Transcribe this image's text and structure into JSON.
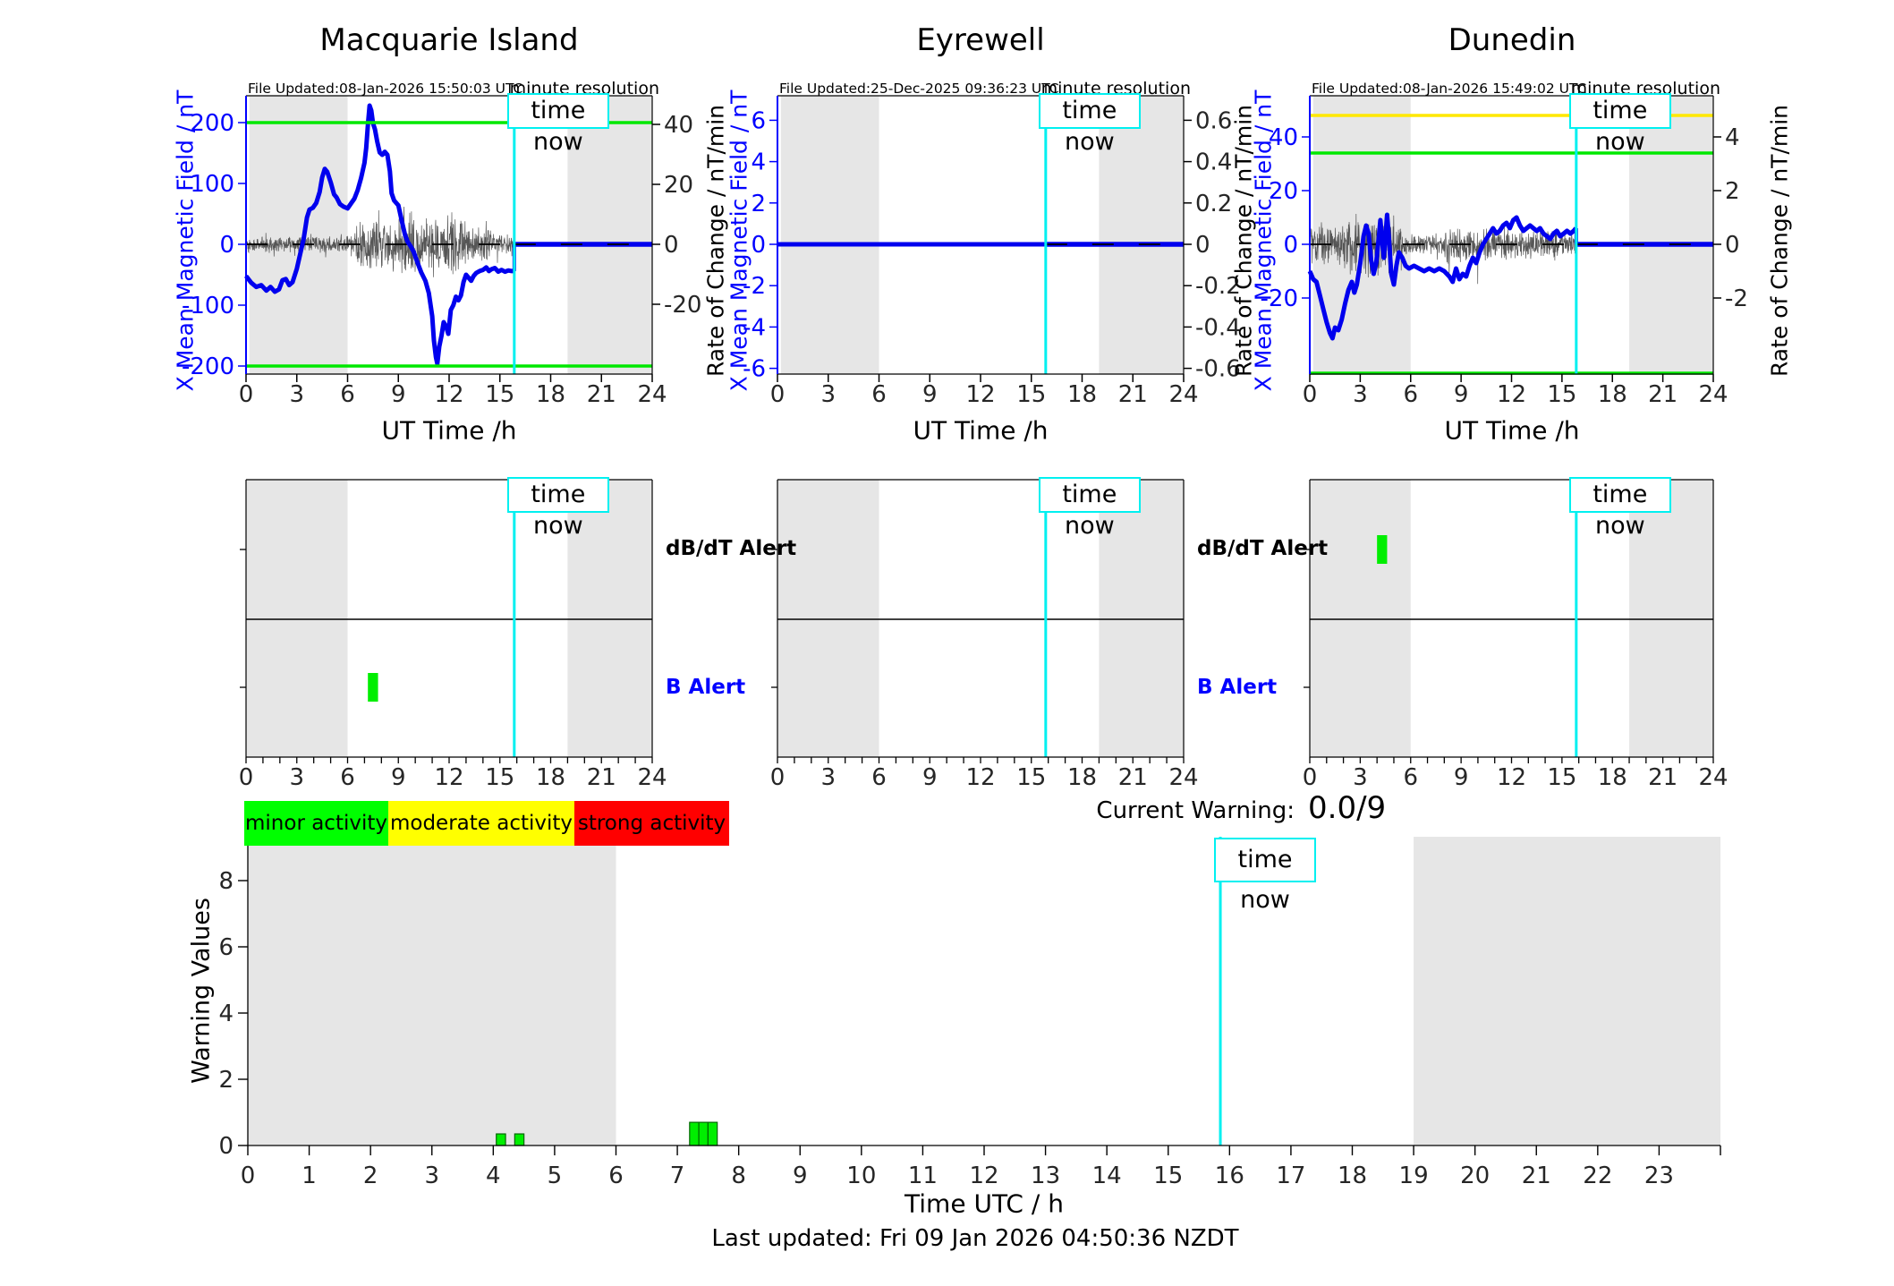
{
  "time_now_hour": 15.85,
  "time_now_label": "time now",
  "colors": {
    "field_line": "#0000ee",
    "noise_line": "#444444",
    "gray_band": "#e6e6e6",
    "cyan": "#00f0f0",
    "green_threshold": "#00e800",
    "yellow_threshold": "#ffe800",
    "minor": "#00ff00",
    "moderate": "#ffff00",
    "strong": "#ff0000",
    "bar_green": "#00ee00",
    "axis_blue": "#0000ff"
  },
  "chart_data": [
    {
      "type": "line",
      "title": "Macquarie Island",
      "file_updated": "File Updated:08-Jan-2026 15:50:03 UTC",
      "resolution_note": "minute resolution",
      "xlabel": "UT Time /h",
      "ylabel_left": "X Mean Magnetic Field / nT",
      "ylabel_right": "Rate of Change / nT/min",
      "xticks": [
        0,
        3,
        6,
        9,
        12,
        15,
        18,
        21,
        24
      ],
      "yticks_left": [
        200,
        100,
        0,
        -100,
        -200
      ],
      "yticks_right": [
        40,
        20,
        0,
        -20
      ],
      "xlim": [
        0,
        24
      ],
      "night_bands": [
        [
          0.2,
          6
        ],
        [
          19,
          24
        ]
      ],
      "thresholds": [
        {
          "value": 200,
          "color": "green"
        },
        {
          "value": -200,
          "color": "green"
        }
      ],
      "forecast": {
        "from": 15.85,
        "to": 24,
        "value": 0
      },
      "noise_bursts": [
        [
          0,
          6,
          3
        ],
        [
          6,
          6.5,
          4.5
        ],
        [
          6.5,
          9,
          9.5
        ],
        [
          9,
          13,
          12
        ],
        [
          13,
          14.5,
          6.5
        ],
        [
          14.5,
          15.83,
          4
        ]
      ],
      "series": [
        {
          "name": "X Mean Magnetic Field",
          "points": [
            [
              0,
              -52
            ],
            [
              0.3,
              -63
            ],
            [
              0.6,
              -70
            ],
            [
              0.9,
              -67
            ],
            [
              1.2,
              -76
            ],
            [
              1.45,
              -70
            ],
            [
              1.7,
              -78
            ],
            [
              1.95,
              -74
            ],
            [
              2.15,
              -59
            ],
            [
              2.35,
              -57
            ],
            [
              2.55,
              -67
            ],
            [
              2.75,
              -62
            ],
            [
              3,
              -40
            ],
            [
              3.2,
              -16
            ],
            [
              3.4,
              8
            ],
            [
              3.6,
              44
            ],
            [
              3.75,
              57
            ],
            [
              3.95,
              60
            ],
            [
              4.15,
              68
            ],
            [
              4.35,
              86
            ],
            [
              4.5,
              110
            ],
            [
              4.65,
              124
            ],
            [
              4.8,
              119
            ],
            [
              5,
              102
            ],
            [
              5.2,
              82
            ],
            [
              5.35,
              77
            ],
            [
              5.55,
              66
            ],
            [
              5.75,
              62
            ],
            [
              6,
              59
            ],
            [
              6.2,
              67
            ],
            [
              6.4,
              75
            ],
            [
              6.6,
              89
            ],
            [
              6.8,
              109
            ],
            [
              7,
              134
            ],
            [
              7.1,
              158
            ],
            [
              7.2,
              196
            ],
            [
              7.3,
              228
            ],
            [
              7.4,
              220
            ],
            [
              7.5,
              199
            ],
            [
              7.62,
              189
            ],
            [
              7.75,
              169
            ],
            [
              7.9,
              151
            ],
            [
              8.05,
              147
            ],
            [
              8.2,
              152
            ],
            [
              8.35,
              147
            ],
            [
              8.5,
              120
            ],
            [
              8.6,
              84
            ],
            [
              8.75,
              72
            ],
            [
              9,
              64
            ],
            [
              9.2,
              39
            ],
            [
              9.4,
              15
            ],
            [
              9.55,
              4
            ],
            [
              9.7,
              -2
            ],
            [
              9.9,
              -12
            ],
            [
              10.1,
              -28
            ],
            [
              10.35,
              -46
            ],
            [
              10.6,
              -60
            ],
            [
              10.8,
              -80
            ],
            [
              11,
              -118
            ],
            [
              11.1,
              -158
            ],
            [
              11.22,
              -185
            ],
            [
              11.3,
              -196
            ],
            [
              11.42,
              -168
            ],
            [
              11.55,
              -150
            ],
            [
              11.68,
              -128
            ],
            [
              11.82,
              -135
            ],
            [
              11.95,
              -147
            ],
            [
              12.1,
              -108
            ],
            [
              12.25,
              -100
            ],
            [
              12.4,
              -86
            ],
            [
              12.55,
              -92
            ],
            [
              12.7,
              -84
            ],
            [
              12.85,
              -62
            ],
            [
              13,
              -50
            ],
            [
              13.15,
              -55
            ],
            [
              13.3,
              -60
            ],
            [
              13.45,
              -52
            ],
            [
              13.6,
              -47
            ],
            [
              13.8,
              -44
            ],
            [
              14,
              -42
            ],
            [
              14.2,
              -38
            ],
            [
              14.35,
              -44
            ],
            [
              14.5,
              -41
            ],
            [
              14.7,
              -39
            ],
            [
              14.9,
              -45
            ],
            [
              15.1,
              -42
            ],
            [
              15.3,
              -45
            ],
            [
              15.5,
              -43
            ],
            [
              15.7,
              -44
            ],
            [
              15.83,
              -44
            ]
          ]
        }
      ]
    },
    {
      "type": "line",
      "title": "Eyrewell",
      "file_updated": "File Updated:25-Dec-2025 09:36:23 UTC",
      "resolution_note": "minute resolution",
      "xlabel": "UT Time /h",
      "ylabel_left": "X Mean Magnetic Field / nT",
      "ylabel_right": "Rate of Change / nT/min",
      "xticks": [
        0,
        3,
        6,
        9,
        12,
        15,
        18,
        21,
        24
      ],
      "yticks_left": [
        6,
        4,
        2,
        0,
        -2,
        -4,
        -6
      ],
      "yticks_right": [
        0.6,
        0.4,
        0.2,
        0,
        -0.2,
        -0.4,
        -0.6
      ],
      "xlim": [
        0,
        24
      ],
      "night_bands": [
        [
          0.2,
          6
        ],
        [
          19,
          24
        ]
      ],
      "thresholds": [],
      "forecast": {
        "from": 15.85,
        "to": 24,
        "value": 0
      },
      "noise_bursts": [],
      "series": [
        {
          "name": "X Mean Magnetic Field",
          "points": [
            [
              0,
              0
            ],
            [
              15.83,
              0
            ]
          ]
        }
      ]
    },
    {
      "type": "line",
      "title": "Dunedin",
      "file_updated": "File Updated:08-Jan-2026 15:49:02 UTC",
      "resolution_note": "minute resolution",
      "xlabel": "UT Time /h",
      "ylabel_left": "X Mean Magnetic Field / nT",
      "ylabel_right": "Rate of Change / nT/min",
      "xticks": [
        0,
        3,
        6,
        9,
        12,
        15,
        18,
        21,
        24
      ],
      "yticks_left": [
        40,
        20,
        0,
        -20
      ],
      "yticks_right": [
        4,
        2,
        0,
        -2
      ],
      "xlim": [
        0,
        24
      ],
      "night_bands": [
        [
          0.2,
          6
        ],
        [
          19,
          24
        ]
      ],
      "thresholds": [
        {
          "value": 48,
          "color": "yellow"
        },
        {
          "value": 34,
          "color": "green"
        },
        {
          "value": -48,
          "color": "green"
        }
      ],
      "forecast": {
        "from": 15.85,
        "to": 24,
        "value": 0
      },
      "noise_bursts": [
        [
          0,
          2,
          0.9
        ],
        [
          2,
          3.5,
          1.3
        ],
        [
          3.5,
          5,
          1.35
        ],
        [
          5,
          5.5,
          0.7
        ],
        [
          5.5,
          8,
          0.4
        ],
        [
          8,
          11,
          0.75
        ],
        [
          11,
          15.83,
          0.65
        ]
      ],
      "series": [
        {
          "name": "X Mean Magnetic Field",
          "points": [
            [
              0,
              -10
            ],
            [
              0.2,
              -13
            ],
            [
              0.4,
              -14
            ],
            [
              0.6,
              -19
            ],
            [
              0.8,
              -24
            ],
            [
              1,
              -29
            ],
            [
              1.2,
              -33
            ],
            [
              1.35,
              -35
            ],
            [
              1.5,
              -31
            ],
            [
              1.7,
              -32
            ],
            [
              1.9,
              -28
            ],
            [
              2.1,
              -22
            ],
            [
              2.3,
              -17
            ],
            [
              2.5,
              -14
            ],
            [
              2.65,
              -18
            ],
            [
              2.8,
              -15
            ],
            [
              3,
              -7
            ],
            [
              3.2,
              3
            ],
            [
              3.35,
              7
            ],
            [
              3.5,
              4
            ],
            [
              3.65,
              -6
            ],
            [
              3.8,
              -11
            ],
            [
              3.95,
              -7
            ],
            [
              4.1,
              2
            ],
            [
              4.2,
              9
            ],
            [
              4.3,
              2
            ],
            [
              4.4,
              -5
            ],
            [
              4.5,
              3
            ],
            [
              4.6,
              11
            ],
            [
              4.7,
              3
            ],
            [
              4.85,
              -11
            ],
            [
              5,
              -15
            ],
            [
              5.15,
              -8
            ],
            [
              5.3,
              -3
            ],
            [
              5.5,
              -5
            ],
            [
              5.7,
              -8
            ],
            [
              5.9,
              -9
            ],
            [
              6.2,
              -8
            ],
            [
              6.5,
              -9
            ],
            [
              6.8,
              -10
            ],
            [
              7.1,
              -9
            ],
            [
              7.4,
              -10
            ],
            [
              7.7,
              -9
            ],
            [
              8,
              -10
            ],
            [
              8.3,
              -12
            ],
            [
              8.5,
              -14
            ],
            [
              8.7,
              -9
            ],
            [
              8.9,
              -13
            ],
            [
              9.1,
              -11
            ],
            [
              9.3,
              -12
            ],
            [
              9.5,
              -8
            ],
            [
              9.7,
              -5
            ],
            [
              9.9,
              -7
            ],
            [
              10.1,
              -3
            ],
            [
              10.3,
              0
            ],
            [
              10.5,
              2
            ],
            [
              10.7,
              4
            ],
            [
              10.9,
              6
            ],
            [
              11.1,
              4
            ],
            [
              11.3,
              5
            ],
            [
              11.5,
              7
            ],
            [
              11.7,
              8
            ],
            [
              11.9,
              6
            ],
            [
              12.1,
              9
            ],
            [
              12.3,
              10
            ],
            [
              12.5,
              7
            ],
            [
              12.7,
              5
            ],
            [
              12.9,
              6
            ],
            [
              13.1,
              7
            ],
            [
              13.3,
              6
            ],
            [
              13.5,
              5
            ],
            [
              13.7,
              6
            ],
            [
              13.9,
              4
            ],
            [
              14.1,
              3
            ],
            [
              14.3,
              2
            ],
            [
              14.5,
              4
            ],
            [
              14.7,
              5
            ],
            [
              14.9,
              3
            ],
            [
              15.1,
              4
            ],
            [
              15.3,
              5
            ],
            [
              15.5,
              4
            ],
            [
              15.7,
              5
            ],
            [
              15.83,
              6
            ]
          ]
        }
      ]
    },
    {
      "type": "timeline",
      "rows": [
        "dB/dT Alert",
        "B Alert"
      ],
      "xticks": [
        0,
        3,
        6,
        9,
        12,
        15,
        18,
        21,
        24
      ],
      "xlim": [
        0,
        24
      ],
      "night_bands": [
        [
          0,
          6
        ],
        [
          19,
          24
        ]
      ],
      "panels": [
        {
          "station": "Macquarie Island",
          "dbdt_events": [],
          "b_events": [
            [
              7.2,
              7.8
            ]
          ]
        },
        {
          "station": "Eyrewell",
          "dbdt_events": [],
          "b_events": []
        },
        {
          "station": "Dunedin",
          "dbdt_events": [
            [
              4.0,
              4.6
            ]
          ],
          "b_events": []
        }
      ]
    },
    {
      "type": "bar",
      "ylabel": "Warning Values",
      "xlabel": "Time UTC / h",
      "yticks": [
        0,
        2,
        4,
        6,
        8
      ],
      "xticks": [
        0,
        1,
        2,
        3,
        4,
        5,
        6,
        7,
        8,
        9,
        10,
        11,
        12,
        13,
        14,
        15,
        16,
        17,
        18,
        19,
        20,
        21,
        22,
        23
      ],
      "xlim": [
        0,
        24
      ],
      "ylim": [
        0,
        9.3
      ],
      "night_bands": [
        [
          0,
          6
        ],
        [
          19,
          24
        ]
      ],
      "bar_width": 0.15,
      "bars": [
        {
          "t": 4.05,
          "v": 0.35
        },
        {
          "t": 4.35,
          "v": 0.35
        },
        {
          "t": 7.2,
          "v": 0.7
        },
        {
          "t": 7.35,
          "v": 0.7
        },
        {
          "t": 7.5,
          "v": 0.7
        }
      ]
    }
  ],
  "alerts": {
    "dbdt_label": "dB/dT Alert",
    "b_label": "B Alert"
  },
  "legend": [
    {
      "label": "minor activity",
      "color": "#00ff00"
    },
    {
      "label": "moderate activity",
      "color": "#ffff00"
    },
    {
      "label": "strong activity",
      "color": "#ff0000"
    }
  ],
  "current_warning": {
    "label": "Current Warning:",
    "value": "0.0/9"
  },
  "footer": "Last updated: Fri 09 Jan 2026 04:50:36 NZDT"
}
